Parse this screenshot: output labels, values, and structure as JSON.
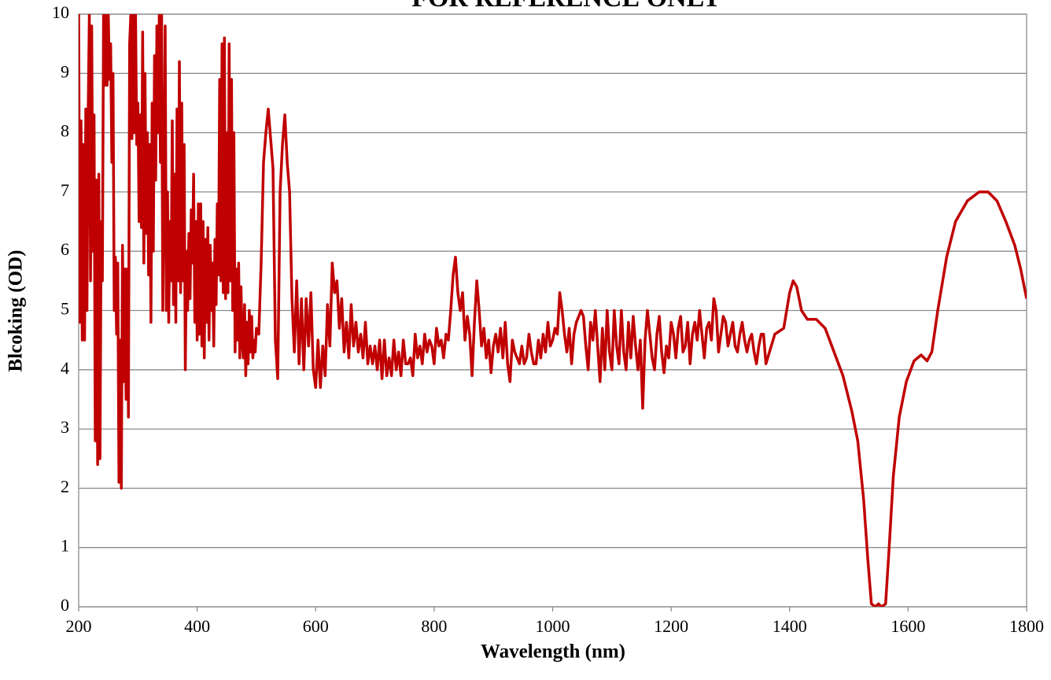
{
  "chart_data": {
    "type": "line",
    "title": "FOR REFERENCE ONLY",
    "xlabel": "Wavelength (nm)",
    "ylabel": "Blcoking (OD)",
    "color": "#c00000",
    "grid": true,
    "xlim": [
      200,
      1800
    ],
    "ylim": [
      0,
      10
    ],
    "xticks": [
      200,
      400,
      600,
      800,
      1000,
      1200,
      1400,
      1600,
      1800
    ],
    "yticks": [
      0,
      1,
      2,
      3,
      4,
      5,
      6,
      7,
      8,
      9,
      10
    ],
    "x": [
      200,
      202,
      204,
      206,
      208,
      210,
      212,
      214,
      216,
      218,
      220,
      222,
      224,
      226,
      228,
      230,
      232,
      234,
      236,
      238,
      240,
      242,
      244,
      246,
      248,
      250,
      252,
      254,
      256,
      258,
      260,
      262,
      264,
      266,
      268,
      270,
      272,
      274,
      276,
      278,
      280,
      282,
      284,
      286,
      288,
      290,
      292,
      294,
      296,
      298,
      300,
      302,
      304,
      306,
      308,
      310,
      312,
      314,
      316,
      318,
      320,
      322,
      324,
      326,
      328,
      330,
      332,
      334,
      336,
      338,
      340,
      342,
      344,
      346,
      348,
      350,
      352,
      354,
      356,
      358,
      360,
      362,
      364,
      366,
      368,
      370,
      372,
      374,
      376,
      378,
      380,
      382,
      384,
      386,
      388,
      390,
      392,
      394,
      396,
      398,
      400,
      402,
      404,
      406,
      408,
      410,
      412,
      414,
      416,
      418,
      420,
      422,
      424,
      426,
      428,
      430,
      432,
      434,
      436,
      438,
      440,
      442,
      444,
      446,
      448,
      450,
      452,
      454,
      456,
      458,
      460,
      462,
      464,
      466,
      468,
      470,
      472,
      474,
      476,
      478,
      480,
      482,
      484,
      486,
      488,
      490,
      492,
      494,
      496,
      498,
      500,
      504,
      508,
      512,
      516,
      520,
      524,
      528,
      532,
      536,
      540,
      544,
      548,
      552,
      556,
      560,
      564,
      568,
      572,
      576,
      580,
      584,
      588,
      592,
      596,
      600,
      604,
      608,
      612,
      616,
      620,
      624,
      628,
      632,
      636,
      640,
      644,
      648,
      652,
      656,
      660,
      664,
      668,
      672,
      676,
      680,
      684,
      688,
      692,
      696,
      700,
      704,
      708,
      712,
      716,
      720,
      724,
      728,
      732,
      736,
      740,
      744,
      748,
      752,
      756,
      760,
      764,
      768,
      772,
      776,
      780,
      784,
      788,
      792,
      796,
      800,
      804,
      808,
      812,
      816,
      820,
      824,
      828,
      832,
      836,
      840,
      844,
      848,
      852,
      856,
      860,
      864,
      868,
      872,
      876,
      880,
      884,
      888,
      892,
      896,
      900,
      904,
      908,
      912,
      916,
      920,
      924,
      928,
      932,
      936,
      940,
      944,
      948,
      952,
      956,
      960,
      964,
      968,
      972,
      976,
      980,
      984,
      988,
      992,
      996,
      1000,
      1004,
      1008,
      1012,
      1016,
      1020,
      1024,
      1028,
      1032,
      1036,
      1040,
      1044,
      1048,
      1052,
      1056,
      1060,
      1064,
      1068,
      1072,
      1076,
      1080,
      1084,
      1088,
      1092,
      1096,
      1100,
      1104,
      1108,
      1112,
      1116,
      1120,
      1124,
      1128,
      1132,
      1136,
      1140,
      1144,
      1148,
      1152,
      1156,
      1160,
      1164,
      1168,
      1172,
      1176,
      1180,
      1184,
      1188,
      1192,
      1196,
      1200,
      1204,
      1208,
      1212,
      1216,
      1220,
      1224,
      1228,
      1232,
      1236,
      1240,
      1244,
      1248,
      1252,
      1256,
      1260,
      1264,
      1268,
      1272,
      1276,
      1280,
      1284,
      1288,
      1292,
      1296,
      1300,
      1304,
      1308,
      1312,
      1316,
      1320,
      1324,
      1328,
      1332,
      1336,
      1340,
      1344,
      1348,
      1352,
      1356,
      1360,
      1375,
      1390,
      1400,
      1406,
      1412,
      1420,
      1430,
      1445,
      1460,
      1475,
      1490,
      1505,
      1515,
      1525,
      1532,
      1538,
      1545,
      1550,
      1555,
      1562,
      1568,
      1575,
      1585,
      1597,
      1610,
      1622,
      1632,
      1640,
      1650,
      1665,
      1680,
      1700,
      1720,
      1735,
      1750,
      1765,
      1780,
      1790,
      1800
    ],
    "values": [
      10,
      4.8,
      8.2,
      4.5,
      7.8,
      4.5,
      8.4,
      5.0,
      8.3,
      10,
      5.5,
      9.8,
      6.0,
      8.3,
      2.8,
      7.2,
      2.4,
      7.3,
      2.5,
      6.5,
      5.5,
      10,
      8.8,
      10,
      8.8,
      10,
      8.9,
      9.5,
      7.5,
      9.0,
      5.0,
      5.9,
      4.6,
      5.8,
      2.1,
      4.5,
      2.0,
      6.1,
      3.8,
      5.7,
      3.5,
      5.7,
      3.2,
      9.5,
      10,
      7.9,
      10,
      8.0,
      10,
      7.8,
      8.5,
      6.5,
      8.3,
      6.4,
      9.7,
      5.8,
      9.0,
      6.3,
      8.0,
      5.6,
      7.8,
      4.8,
      8.5,
      6.0,
      9.3,
      7.2,
      9.8,
      8.0,
      10,
      7.5,
      10,
      5.0,
      7.0,
      9.8,
      5.0,
      7.0,
      4.8,
      6.5,
      5.5,
      8.2,
      5.1,
      7.3,
      4.8,
      8.4,
      5.5,
      9.2,
      5.3,
      8.5,
      5.5,
      7.8,
      4.0,
      6.0,
      5.0,
      6.3,
      5.2,
      6.7,
      5.8,
      7.3,
      4.8,
      6.5,
      4.5,
      6.8,
      4.6,
      6.8,
      4.4,
      6.5,
      4.2,
      6.2,
      4.8,
      6.4,
      4.5,
      6.1,
      5.0,
      5.8,
      4.4,
      6.2,
      5.1,
      6.8,
      5.6,
      8.9,
      5.5,
      9.5,
      5.3,
      9.6,
      5.2,
      8.0,
      5.3,
      9.5,
      5.5,
      8.9,
      5.0,
      8.0,
      4.3,
      5.7,
      4.5,
      5.8,
      4.2,
      5.4,
      4.5,
      4.2,
      5.1,
      3.9,
      4.8,
      4.1,
      5.0,
      4.3,
      4.9,
      4.2,
      4.5,
      4.3,
      4.7,
      4.6,
      5.8,
      7.5,
      8.0,
      8.4,
      7.9,
      7.4,
      4.5,
      3.85,
      7.0,
      7.8,
      8.3,
      7.5,
      7.0,
      5.2,
      4.3,
      5.5,
      4.1,
      5.2,
      4.0,
      5.2,
      4.4,
      5.3,
      4.0,
      3.7,
      4.5,
      3.7,
      4.4,
      3.9,
      5.1,
      4.4,
      5.8,
      5.3,
      5.5,
      4.7,
      5.2,
      4.3,
      4.8,
      4.2,
      5.1,
      4.4,
      4.8,
      4.3,
      4.6,
      4.2,
      4.8,
      4.1,
      4.4,
      4.1,
      4.4,
      4.0,
      4.5,
      3.85,
      4.5,
      3.9,
      4.2,
      3.9,
      4.5,
      4.0,
      4.3,
      3.9,
      4.5,
      4.1,
      4.1,
      4.2,
      3.9,
      4.6,
      4.2,
      4.4,
      4.1,
      4.6,
      4.3,
      4.5,
      4.4,
      4.1,
      4.7,
      4.4,
      4.5,
      4.2,
      4.6,
      4.5,
      5.0,
      5.6,
      5.9,
      5.3,
      5.0,
      5.3,
      4.5,
      4.9,
      4.6,
      3.9,
      4.8,
      5.5,
      5.0,
      4.4,
      4.7,
      4.2,
      4.5,
      3.95,
      4.4,
      4.6,
      4.3,
      4.7,
      4.2,
      4.8,
      4.1,
      3.8,
      4.5,
      4.3,
      4.2,
      4.1,
      4.4,
      4.1,
      4.2,
      4.6,
      4.3,
      4.1,
      4.1,
      4.5,
      4.2,
      4.6,
      4.3,
      4.8,
      4.4,
      4.5,
      4.7,
      4.6,
      5.3,
      5.0,
      4.6,
      4.3,
      4.7,
      4.1,
      4.6,
      4.8,
      4.9,
      5.0,
      4.9,
      4.4,
      4.0,
      4.8,
      4.5,
      5.0,
      4.4,
      3.8,
      4.7,
      4.0,
      5.0,
      4.3,
      4.0,
      5.0,
      4.4,
      4.1,
      5.0,
      4.3,
      4.0,
      4.8,
      4.2,
      4.9,
      4.4,
      4.0,
      4.5,
      3.35,
      4.5,
      5.0,
      4.6,
      4.2,
      4.0,
      4.6,
      4.9,
      4.3,
      3.95,
      4.4,
      4.2,
      4.8,
      4.6,
      4.2,
      4.7,
      4.9,
      4.3,
      4.4,
      4.8,
      4.1,
      4.6,
      4.8,
      4.5,
      5.0,
      4.6,
      4.2,
      4.7,
      4.8,
      4.5,
      5.2,
      5.0,
      4.3,
      4.6,
      4.9,
      4.8,
      4.4,
      4.6,
      4.8,
      4.4,
      4.3,
      4.6,
      4.8,
      4.5,
      4.3,
      4.5,
      4.6,
      4.3,
      4.1,
      4.4,
      4.6,
      4.6,
      4.1,
      4.6,
      4.7,
      5.3,
      5.5,
      5.4,
      5.0,
      4.85,
      4.85,
      4.7,
      4.3,
      3.9,
      3.3,
      2.8,
      1.8,
      0.8,
      0.05,
      0,
      0.05,
      0,
      0.05,
      1.0,
      2.2,
      3.2,
      3.8,
      4.15,
      4.25,
      4.15,
      4.3,
      5.0,
      5.9,
      6.5,
      6.85,
      7.0,
      7.0,
      6.85,
      6.5,
      6.1,
      5.7,
      5.2
    ]
  }
}
